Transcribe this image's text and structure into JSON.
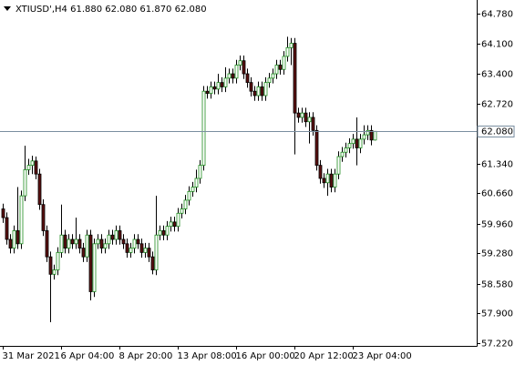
{
  "chart_data": {
    "type": "candlestick",
    "header": "XTIUSD',H4  61.880 62.080 61.870 62.080",
    "categories": [
      "31 Mar 2021",
      null,
      null,
      null,
      null,
      null,
      null,
      null,
      null,
      null,
      null,
      null,
      null,
      null,
      null,
      null,
      "6 Apr 04:00",
      null,
      null,
      null,
      null,
      null,
      null,
      null,
      null,
      null,
      null,
      null,
      null,
      null,
      null,
      null,
      "8 Apr 20:00",
      null,
      null,
      null,
      null,
      null,
      null,
      null,
      null,
      null,
      null,
      null,
      null,
      null,
      null,
      null,
      "13 Apr 08:00",
      null,
      null,
      null,
      null,
      null,
      null,
      null,
      null,
      null,
      null,
      null,
      null,
      null,
      null,
      null,
      "16 Apr 00:00",
      null,
      null,
      null,
      null,
      null,
      null,
      null,
      null,
      null,
      null,
      null,
      null,
      null,
      null,
      null,
      "20 Apr 12:00",
      null,
      null,
      null,
      null,
      null,
      null,
      null,
      null,
      null,
      null,
      null,
      null,
      null,
      null,
      null,
      "23 Apr 04:00",
      null,
      null,
      null,
      null,
      null,
      null
    ],
    "open": [
      60.3,
      60.1,
      59.6,
      59.4,
      59.8,
      59.5,
      60.6,
      61.2,
      61.3,
      61.4,
      61.1,
      60.4,
      59.8,
      59.2,
      58.8,
      58.9,
      59.3,
      59.7,
      59.4,
      59.6,
      59.5,
      59.6,
      59.4,
      59.2,
      59.7,
      58.4,
      59.5,
      59.6,
      59.4,
      59.5,
      59.7,
      59.6,
      59.8,
      59.6,
      59.5,
      59.3,
      59.4,
      59.6,
      59.5,
      59.3,
      59.4,
      59.2,
      58.9,
      59.7,
      59.8,
      59.7,
      59.9,
      60.0,
      59.9,
      60.2,
      60.3,
      60.5,
      60.7,
      60.8,
      61.0,
      61.3,
      63.0,
      62.95,
      63.1,
      63.05,
      63.2,
      63.1,
      63.3,
      63.4,
      63.3,
      63.6,
      63.7,
      63.4,
      63.2,
      63.0,
      62.9,
      63.1,
      62.9,
      63.2,
      63.3,
      63.4,
      63.6,
      63.5,
      63.8,
      64.0,
      64.1,
      62.5,
      62.4,
      62.5,
      62.3,
      62.4,
      62.1,
      61.3,
      61.0,
      60.9,
      61.1,
      60.8,
      61.1,
      61.5,
      61.6,
      61.7,
      61.8,
      61.9,
      61.7,
      61.9,
      62.0,
      62.1,
      61.88
    ],
    "high": [
      60.42,
      60.22,
      59.72,
      59.92,
      60.8,
      60.72,
      61.75,
      61.45,
      61.52,
      61.5,
      61.22,
      60.52,
      59.92,
      59.32,
      59.02,
      59.42,
      60.4,
      59.82,
      59.72,
      59.72,
      60.1,
      59.72,
      59.52,
      59.82,
      59.82,
      59.62,
      59.72,
      59.72,
      59.62,
      59.82,
      59.82,
      59.92,
      59.92,
      59.72,
      59.62,
      59.52,
      59.72,
      59.72,
      59.62,
      59.52,
      59.52,
      59.32,
      60.6,
      59.92,
      59.92,
      60.02,
      60.12,
      60.12,
      60.32,
      60.42,
      60.62,
      60.82,
      60.92,
      61.2,
      61.42,
      63.12,
      63.12,
      63.22,
      63.22,
      63.4,
      63.32,
      63.55,
      63.52,
      63.52,
      63.72,
      63.82,
      63.82,
      63.52,
      63.32,
      63.12,
      63.22,
      63.22,
      63.32,
      63.42,
      63.52,
      63.72,
      63.72,
      63.92,
      64.25,
      64.22,
      64.22,
      62.62,
      62.62,
      62.62,
      62.52,
      62.52,
      62.22,
      61.42,
      61.12,
      61.22,
      61.22,
      61.22,
      61.62,
      61.72,
      61.82,
      61.92,
      62.02,
      62.4,
      62.02,
      62.22,
      62.22,
      62.22,
      62.08
    ],
    "low": [
      59.98,
      59.48,
      59.28,
      59.28,
      59.38,
      59.38,
      60.48,
      61.08,
      61.1,
      60.98,
      60.28,
      59.68,
      59.08,
      57.7,
      58.68,
      58.78,
      59.18,
      59.28,
      59.28,
      59.38,
      59.38,
      59.28,
      59.08,
      59.08,
      58.2,
      58.28,
      59.38,
      59.28,
      59.28,
      59.38,
      59.48,
      59.48,
      59.48,
      59.38,
      59.18,
      59.18,
      59.28,
      59.38,
      59.18,
      59.18,
      59.08,
      58.8,
      58.78,
      59.58,
      59.58,
      59.58,
      59.78,
      59.78,
      59.78,
      60.08,
      60.18,
      60.38,
      60.58,
      60.68,
      60.88,
      61.18,
      62.83,
      62.83,
      62.93,
      62.93,
      62.98,
      62.98,
      63.18,
      63.18,
      63.18,
      63.48,
      63.28,
      63.08,
      62.88,
      62.78,
      62.78,
      62.78,
      62.78,
      63.08,
      63.18,
      63.28,
      63.38,
      63.38,
      63.68,
      63.6,
      61.55,
      62.28,
      62.28,
      62.18,
      61.8,
      61.98,
      61.18,
      60.88,
      60.78,
      60.6,
      60.68,
      60.68,
      60.98,
      61.38,
      61.48,
      61.58,
      61.68,
      61.3,
      61.58,
      61.78,
      61.88,
      61.76,
      61.87
    ],
    "close": [
      60.1,
      59.6,
      59.4,
      59.8,
      59.5,
      60.6,
      61.2,
      61.3,
      61.4,
      61.1,
      60.4,
      59.8,
      59.2,
      58.8,
      58.9,
      59.3,
      59.7,
      59.4,
      59.6,
      59.5,
      59.6,
      59.4,
      59.2,
      59.7,
      58.4,
      59.5,
      59.6,
      59.4,
      59.5,
      59.7,
      59.6,
      59.8,
      59.6,
      59.5,
      59.3,
      59.4,
      59.6,
      59.5,
      59.3,
      59.4,
      59.2,
      58.9,
      59.7,
      59.8,
      59.7,
      59.9,
      60.0,
      59.9,
      60.2,
      60.3,
      60.5,
      60.7,
      60.8,
      61.0,
      61.3,
      63.0,
      62.95,
      63.1,
      63.05,
      63.2,
      63.1,
      63.3,
      63.4,
      63.3,
      63.6,
      63.7,
      63.4,
      63.2,
      63.0,
      62.9,
      63.1,
      62.9,
      63.2,
      63.3,
      63.4,
      63.6,
      63.5,
      63.8,
      64.0,
      64.1,
      62.5,
      62.4,
      62.5,
      62.3,
      62.4,
      62.1,
      61.3,
      61.0,
      60.9,
      61.1,
      60.8,
      61.1,
      61.5,
      61.6,
      61.7,
      61.8,
      61.9,
      61.7,
      61.9,
      62.0,
      62.1,
      61.88,
      62.08
    ],
    "up_color": "#1e8c1e",
    "down_color": "#5a1010",
    "line_color": "#000000",
    "current_price": {
      "value": 62.08,
      "label": "62.080"
    },
    "price_line_color": "#7a8ea0",
    "ylim": [
      57.157,
      65.093
    ],
    "yticks": [
      {
        "value": 64.78,
        "label": "64.780"
      },
      {
        "value": 64.1,
        "label": "64.100"
      },
      {
        "value": 63.4,
        "label": "63.400"
      },
      {
        "value": 62.72,
        "label": "62.720"
      },
      {
        "value": 61.34,
        "label": "61.340"
      },
      {
        "value": 60.66,
        "label": "60.660"
      },
      {
        "value": 59.96,
        "label": "59.960"
      },
      {
        "value": 59.28,
        "label": "59.280"
      },
      {
        "value": 58.58,
        "label": "58.580"
      },
      {
        "value": 57.9,
        "label": "57.900"
      },
      {
        "value": 57.22,
        "label": "57.220"
      }
    ]
  }
}
